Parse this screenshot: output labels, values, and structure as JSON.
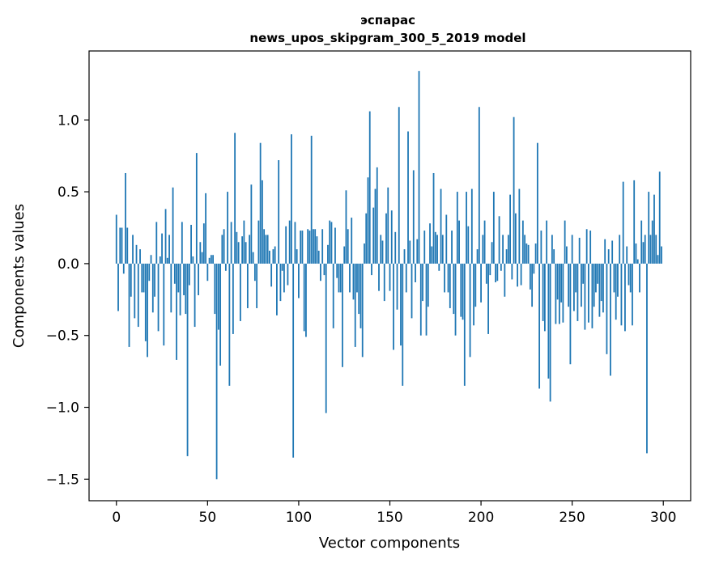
{
  "chart_data": {
    "type": "bar",
    "title_line1": "эспарас",
    "title_line2": "news_upos_skipgram_300_5_2019 model",
    "xlabel": "Vector components",
    "ylabel": "Components values",
    "xlim": [
      -15,
      315
    ],
    "ylim": [
      -1.65,
      1.48
    ],
    "xticks": [
      0,
      50,
      100,
      150,
      200,
      250,
      300
    ],
    "xtick_labels": [
      "0",
      "50",
      "100",
      "150",
      "200",
      "250",
      "300"
    ],
    "yticks": [
      -1.5,
      -1.0,
      -0.5,
      0.0,
      0.5,
      1.0
    ],
    "ytick_labels": [
      "−1.5",
      "−1.0",
      "−0.5",
      "0.0",
      "0.5",
      "1.0"
    ],
    "bar_color": "#1f77b4",
    "values": [
      0.34,
      -0.33,
      0.25,
      0.25,
      -0.07,
      0.63,
      0.25,
      -0.58,
      -0.23,
      0.2,
      -0.38,
      0.13,
      -0.44,
      0.1,
      -0.2,
      -0.2,
      -0.54,
      -0.65,
      -0.12,
      0.06,
      -0.34,
      -0.23,
      0.29,
      -0.47,
      0.05,
      0.21,
      -0.57,
      0.38,
      0.04,
      0.2,
      -0.34,
      0.53,
      -0.14,
      -0.67,
      -0.2,
      -0.36,
      0.29,
      -0.22,
      -0.35,
      -1.34,
      -0.15,
      0.27,
      0.05,
      -0.44,
      0.77,
      -0.22,
      0.15,
      0.08,
      0.28,
      0.49,
      -0.12,
      0.04,
      0.06,
      0.06,
      -0.35,
      -1.5,
      -0.46,
      -0.71,
      0.2,
      0.24,
      -0.05,
      0.5,
      -0.85,
      0.29,
      -0.49,
      0.91,
      0.22,
      0.15,
      -0.4,
      0.19,
      0.3,
      0.15,
      -0.31,
      0.2,
      0.55,
      0.08,
      -0.12,
      -0.31,
      0.3,
      0.84,
      0.58,
      0.24,
      0.2,
      0.2,
      0.09,
      -0.16,
      0.1,
      0.12,
      -0.36,
      0.72,
      -0.26,
      -0.05,
      -0.2,
      0.26,
      -0.15,
      0.3,
      0.9,
      -1.35,
      0.29,
      0.1,
      -0.24,
      0.23,
      0.23,
      -0.47,
      -0.51,
      0.24,
      0.23,
      0.89,
      0.24,
      0.24,
      0.19,
      0.09,
      -0.12,
      0.24,
      -0.08,
      -1.04,
      0.13,
      0.3,
      0.29,
      -0.45,
      0.25,
      -0.1,
      -0.2,
      -0.2,
      -0.72,
      0.12,
      0.51,
      0.24,
      -0.2,
      0.32,
      -0.25,
      -0.58,
      -0.2,
      -0.35,
      -0.45,
      -0.65,
      0.14,
      0.35,
      0.6,
      1.06,
      -0.08,
      0.39,
      0.52,
      0.67,
      -0.19,
      0.2,
      0.16,
      -0.26,
      0.35,
      0.53,
      -0.19,
      0.37,
      -0.6,
      0.22,
      -0.32,
      1.09,
      -0.57,
      -0.85,
      0.1,
      -0.2,
      0.92,
      0.16,
      -0.38,
      0.65,
      -0.13,
      0.17,
      1.34,
      -0.5,
      -0.26,
      0.23,
      -0.5,
      -0.3,
      0.28,
      0.12,
      0.63,
      0.22,
      0.2,
      -0.05,
      0.52,
      0.2,
      -0.2,
      0.34,
      -0.2,
      -0.31,
      0.23,
      -0.35,
      -0.5,
      0.5,
      0.3,
      -0.37,
      -0.39,
      -0.85,
      0.5,
      0.26,
      -0.65,
      0.52,
      -0.43,
      -0.3,
      0.1,
      1.09,
      -0.27,
      0.2,
      0.3,
      -0.14,
      -0.49,
      -0.08,
      0.15,
      0.5,
      -0.13,
      -0.12,
      0.33,
      -0.05,
      0.2,
      -0.23,
      0.1,
      0.2,
      0.48,
      -0.11,
      1.02,
      0.35,
      -0.16,
      0.52,
      -0.15,
      0.3,
      0.2,
      0.14,
      0.13,
      -0.18,
      -0.3,
      -0.07,
      0.14,
      0.84,
      -0.87,
      0.23,
      -0.4,
      -0.47,
      0.3,
      -0.8,
      -0.96,
      0.2,
      0.1,
      -0.42,
      -0.25,
      -0.42,
      -0.27,
      -0.41,
      0.3,
      0.12,
      -0.3,
      -0.7,
      0.2,
      -0.33,
      -0.2,
      -0.4,
      0.18,
      -0.3,
      -0.14,
      -0.46,
      0.24,
      -0.41,
      0.23,
      -0.45,
      -0.3,
      -0.2,
      -0.14,
      -0.37,
      -0.26,
      -0.34,
      0.17,
      -0.63,
      0.1,
      -0.78,
      0.16,
      -0.2,
      -0.39,
      -0.23,
      0.2,
      -0.43,
      0.57,
      -0.47,
      0.12,
      -0.15,
      -0.2,
      -0.43,
      0.58,
      0.14,
      0.03,
      -0.2,
      0.3,
      0.15,
      0.2,
      -1.32,
      0.5,
      0.2,
      0.3,
      0.48,
      0.2,
      0.06,
      0.64,
      0.12
    ]
  }
}
